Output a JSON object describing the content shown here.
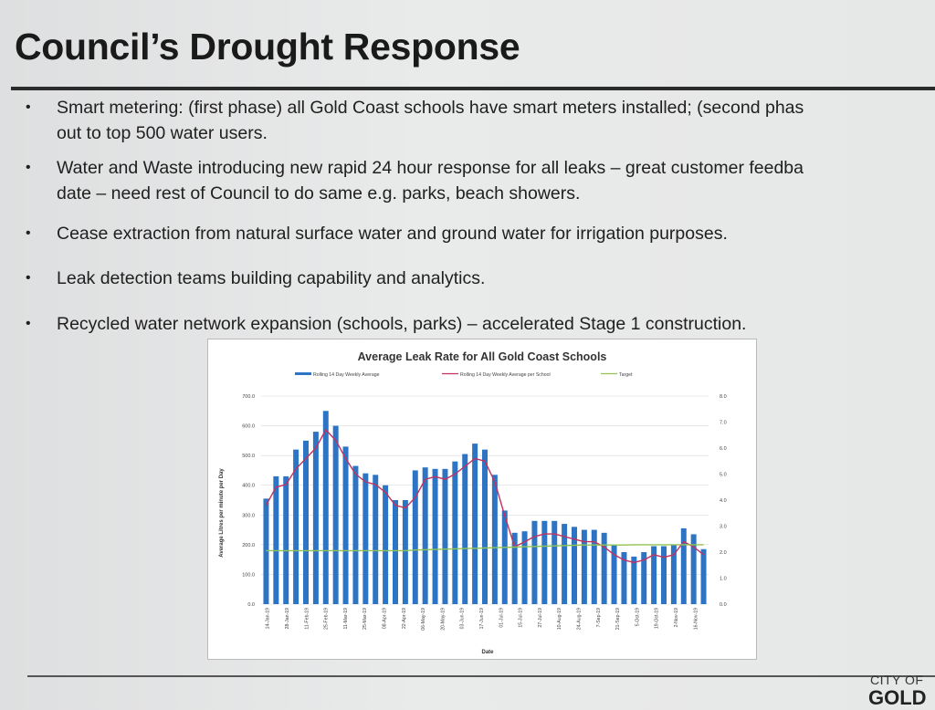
{
  "slide": {
    "title": "Council’s Drought Response",
    "bullets": [
      {
        "line1": "Smart metering: (first phase) all Gold Coast schools have smart meters installed; (second phas",
        "line2": "out to top 500 water users."
      },
      {
        "line1": "Water and Waste introducing new rapid 24 hour response for all leaks – great customer feedba",
        "line2": "date – need rest of Council to do same e.g. parks, beach showers."
      },
      {
        "line1": "Cease extraction from natural surface water and ground water for irrigation purposes."
      },
      {
        "line1": "Leak detection teams building capability and analytics."
      },
      {
        "line1": "Recycled water network expansion (schools, parks) – accelerated Stage 1 construction."
      }
    ],
    "bullet_symbol": "•",
    "footer": {
      "brand_top": "CITY OF",
      "brand_bottom": "GOLD"
    }
  },
  "colors": {
    "bar": "#2e74c4",
    "line": "#c2315e",
    "target": "#92c352"
  },
  "chart_data": {
    "type": "bar",
    "title": "Average Leak Rate for All Gold Coast Schools",
    "xlabel": "Date",
    "ylabel": "Average Litres per minute per Day",
    "ylim": [
      0,
      700
    ],
    "y2lim": [
      0,
      8
    ],
    "yticks": [
      "0.0",
      "100.0",
      "200.0",
      "300.0",
      "400.0",
      "500.0",
      "600.0",
      "700.0"
    ],
    "y2ticks": [
      "0.0",
      "1.0",
      "2.0",
      "3.0",
      "4.0",
      "5.0",
      "6.0",
      "7.0",
      "8.0"
    ],
    "grid": true,
    "legend_position": "top",
    "legend": [
      "Rolling 14 Day Weekly Average",
      "Rolling 14 Day Weekly Average per School",
      "Target"
    ],
    "x_tick_labels": [
      "14-Jan-19",
      "28-Jan-19",
      "11-Feb-19",
      "25-Feb-19",
      "11-Mar-19",
      "25-Mar-19",
      "08-Apr-19",
      "22-Apr-19",
      "06-May-19",
      "20-May-19",
      "03-Jun-19",
      "17-Jun-19",
      "01-Jul-19",
      "15-Jul-19",
      "27-Jul-19",
      "10-Aug-19",
      "24-Aug-19",
      "7-Sep-19",
      "21-Sep-19",
      "5-Oct-19",
      "19-Oct-19",
      "2-Nov-19",
      "16-Nov-19"
    ],
    "series": [
      {
        "name": "Rolling 14 Day Weekly Average",
        "type": "bar",
        "axis": "left",
        "values": [
          355,
          430,
          430,
          520,
          550,
          580,
          650,
          600,
          530,
          465,
          440,
          435,
          400,
          350,
          350,
          450,
          460,
          455,
          455,
          480,
          505,
          540,
          520,
          435,
          315,
          240,
          245,
          280,
          280,
          280,
          270,
          260,
          250,
          250,
          240,
          200,
          175,
          160,
          175,
          195,
          195,
          200,
          255,
          235,
          185
        ]
      },
      {
        "name": "Rolling 14 Day Weekly Average per School",
        "type": "line",
        "axis": "right",
        "values": [
          3.8,
          4.5,
          4.6,
          5.2,
          5.6,
          6.0,
          6.7,
          6.3,
          5.6,
          5.0,
          4.7,
          4.6,
          4.3,
          3.8,
          3.7,
          4.1,
          4.8,
          4.9,
          4.8,
          5.0,
          5.3,
          5.6,
          5.5,
          4.7,
          3.4,
          2.2,
          2.4,
          2.6,
          2.7,
          2.7,
          2.6,
          2.5,
          2.4,
          2.4,
          2.2,
          1.9,
          1.7,
          1.6,
          1.7,
          1.9,
          1.8,
          1.9,
          2.4,
          2.2,
          1.9
        ]
      },
      {
        "name": "Target",
        "type": "line",
        "axis": "left",
        "values": [
          180,
          180,
          180,
          180,
          180,
          180,
          180,
          180,
          180,
          180,
          180,
          180,
          180,
          180,
          180,
          182,
          183,
          184,
          185,
          186,
          187,
          188,
          189,
          190,
          191,
          192,
          193,
          194,
          195,
          196,
          197,
          198,
          199,
          199,
          199,
          199,
          199,
          200,
          200,
          200,
          200,
          200,
          200,
          200,
          200
        ]
      }
    ]
  }
}
